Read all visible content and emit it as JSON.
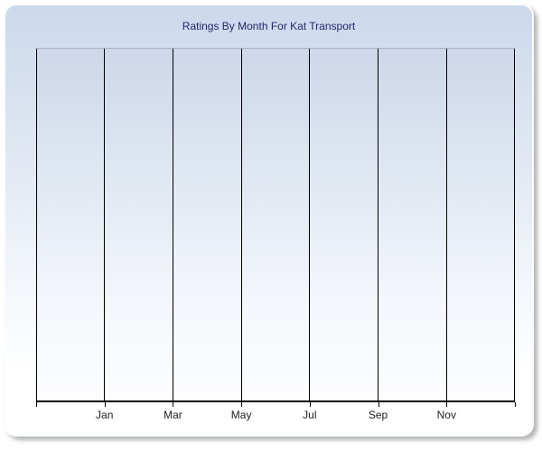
{
  "window": {
    "background_color": "#ffffff"
  },
  "chart": {
    "title": "Ratings By Month For Kat Transport"
  },
  "chart_data": {
    "type": "line",
    "title": "Ratings By Month For Kat Transport",
    "categories": [
      "Jan",
      "Mar",
      "May",
      "Jul",
      "Sep",
      "Nov"
    ],
    "series": [],
    "xlabel": "",
    "ylabel": "",
    "layout": {
      "plot_empty": true,
      "vertical_gridlines": 8,
      "horizontal_gridlines": 0,
      "labeled_gridline_indices": [
        1,
        2,
        3,
        4,
        5,
        6
      ],
      "y_tick_labels": "none",
      "legend": "none",
      "grid": "vertical-only"
    }
  },
  "colors": {
    "title_text": "#252569",
    "axis_label_text": "#202020",
    "gridline": "#000000",
    "plot_border": "#a8afc0",
    "panel_gradient_top": "#ccd9ec",
    "panel_gradient_bottom": "#ffffff",
    "plot_gradient_top": "#cdd7e9",
    "plot_gradient_bottom": "#fdfdfe"
  }
}
